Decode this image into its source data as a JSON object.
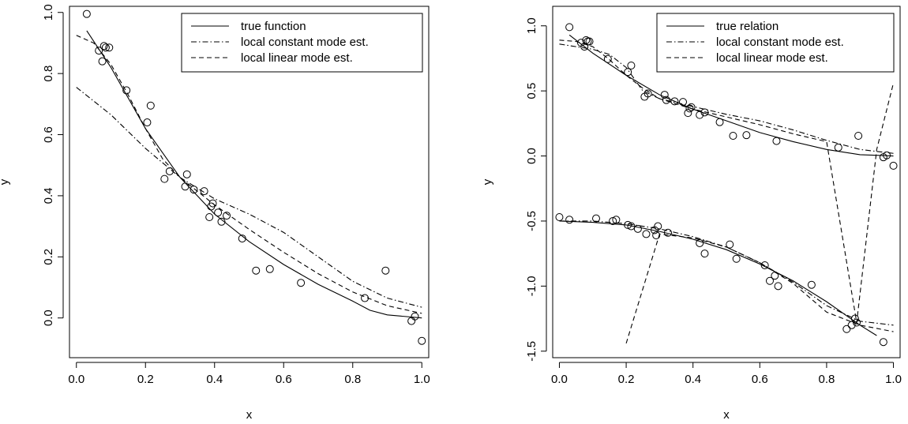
{
  "chart_data": [
    {
      "type": "scatter",
      "title": "",
      "xlabel": "x",
      "ylabel": "y",
      "xlim": [
        -0.02,
        1.02
      ],
      "ylim": [
        -0.13,
        1.02
      ],
      "xticks": [
        0.0,
        0.2,
        0.4,
        0.6,
        0.8,
        1.0
      ],
      "xtick_labels": [
        "0.0",
        "0.2",
        "0.4",
        "0.6",
        "0.8",
        "1.0"
      ],
      "yticks": [
        0.0,
        0.2,
        0.4,
        0.6,
        0.8,
        1.0
      ],
      "ytick_labels": [
        "0.0",
        "0.2",
        "0.4",
        "0.6",
        "0.8",
        "1.0"
      ],
      "legend_position": "top-right",
      "points": {
        "x": [
          0.03,
          0.065,
          0.075,
          0.08,
          0.085,
          0.095,
          0.145,
          0.205,
          0.215,
          0.255,
          0.27,
          0.315,
          0.32,
          0.34,
          0.37,
          0.385,
          0.39,
          0.395,
          0.41,
          0.42,
          0.435,
          0.48,
          0.52,
          0.56,
          0.65,
          0.835,
          0.895,
          0.97,
          0.98,
          1.0
        ],
        "y": [
          0.995,
          0.875,
          0.84,
          0.89,
          0.885,
          0.885,
          0.745,
          0.64,
          0.695,
          0.455,
          0.48,
          0.43,
          0.47,
          0.42,
          0.415,
          0.33,
          0.365,
          0.375,
          0.345,
          0.315,
          0.335,
          0.26,
          0.155,
          0.16,
          0.115,
          0.065,
          0.155,
          -0.01,
          0.005,
          -0.075
        ]
      },
      "series": [
        {
          "name": "true function",
          "style": "solid",
          "x": [
            0.03,
            0.1,
            0.2,
            0.3,
            0.4,
            0.5,
            0.6,
            0.7,
            0.8,
            0.85,
            0.9,
            0.95,
            1.0
          ],
          "y": [
            0.94,
            0.82,
            0.62,
            0.46,
            0.34,
            0.25,
            0.175,
            0.11,
            0.055,
            0.025,
            0.01,
            0.005,
            0.0
          ]
        },
        {
          "name": "local constant mode est.",
          "style": "dashdot",
          "x": [
            0.0,
            0.1,
            0.2,
            0.3,
            0.4,
            0.5,
            0.6,
            0.7,
            0.8,
            0.9,
            1.0
          ],
          "y": [
            0.755,
            0.665,
            0.555,
            0.46,
            0.39,
            0.34,
            0.28,
            0.2,
            0.12,
            0.065,
            0.035
          ]
        },
        {
          "name": "local linear mode est.",
          "style": "dashed",
          "x": [
            0.0,
            0.05,
            0.1,
            0.15,
            0.2,
            0.25,
            0.3,
            0.4,
            0.5,
            0.6,
            0.7,
            0.8,
            0.9,
            1.0
          ],
          "y": [
            0.925,
            0.9,
            0.83,
            0.73,
            0.62,
            0.52,
            0.46,
            0.37,
            0.29,
            0.215,
            0.145,
            0.085,
            0.04,
            0.015
          ]
        }
      ]
    },
    {
      "type": "scatter",
      "title": "",
      "xlabel": "x",
      "ylabel": "y",
      "xlim": [
        -0.02,
        1.02
      ],
      "ylim": [
        -1.55,
        1.15
      ],
      "xticks": [
        0.0,
        0.2,
        0.4,
        0.6,
        0.8,
        1.0
      ],
      "xtick_labels": [
        "0.0",
        "0.2",
        "0.4",
        "0.6",
        "0.8",
        "1.0"
      ],
      "yticks": [
        -1.5,
        -1.0,
        -0.5,
        0.0,
        0.5,
        1.0
      ],
      "ytick_labels": [
        "-1.5",
        "-1.0",
        "-0.5",
        "0.0",
        "0.5",
        "1.0"
      ],
      "legend_position": "top-right",
      "points": {
        "x": [
          0.03,
          0.065,
          0.075,
          0.08,
          0.085,
          0.09,
          0.145,
          0.205,
          0.215,
          0.255,
          0.265,
          0.315,
          0.32,
          0.345,
          0.37,
          0.385,
          0.39,
          0.395,
          0.42,
          0.435,
          0.48,
          0.52,
          0.56,
          0.65,
          0.835,
          0.895,
          0.97,
          0.98,
          1.0,
          0.0,
          0.03,
          0.11,
          0.16,
          0.17,
          0.205,
          0.215,
          0.235,
          0.26,
          0.285,
          0.29,
          0.295,
          0.325,
          0.42,
          0.435,
          0.51,
          0.53,
          0.615,
          0.63,
          0.645,
          0.655,
          0.755,
          0.86,
          0.875,
          0.885,
          0.89,
          0.97
        ],
        "y": [
          0.99,
          0.87,
          0.84,
          0.89,
          0.88,
          0.88,
          0.745,
          0.645,
          0.695,
          0.455,
          0.48,
          0.47,
          0.43,
          0.42,
          0.415,
          0.33,
          0.365,
          0.375,
          0.315,
          0.335,
          0.26,
          0.155,
          0.16,
          0.115,
          0.065,
          0.155,
          -0.01,
          0.005,
          -0.075,
          -0.47,
          -0.49,
          -0.48,
          -0.5,
          -0.49,
          -0.53,
          -0.54,
          -0.56,
          -0.6,
          -0.57,
          -0.61,
          -0.54,
          -0.59,
          -0.67,
          -0.75,
          -0.68,
          -0.79,
          -0.84,
          -0.96,
          -0.92,
          -1.0,
          -0.99,
          -1.33,
          -1.3,
          -1.25,
          -1.28,
          -1.43
        ]
      },
      "series": [
        {
          "name": "true relation",
          "style": "solid",
          "x": [
            0.03,
            0.1,
            0.2,
            0.3,
            0.4,
            0.5,
            0.6,
            0.7,
            0.8,
            0.9,
            0.95,
            1.0
          ],
          "y": [
            0.93,
            0.79,
            0.62,
            0.47,
            0.36,
            0.27,
            0.18,
            0.11,
            0.05,
            0.01,
            0.005,
            0.0
          ],
          "x2": [
            0.0,
            0.1,
            0.2,
            0.3,
            0.4,
            0.5,
            0.6,
            0.7,
            0.8,
            0.9,
            0.95
          ],
          "y2": [
            -0.5,
            -0.51,
            -0.53,
            -0.58,
            -0.64,
            -0.72,
            -0.83,
            -0.96,
            -1.12,
            -1.3,
            -1.38
          ]
        },
        {
          "name": "local constant mode est.",
          "style": "dashdot",
          "x": [
            0.0,
            0.1,
            0.15,
            0.2,
            0.25,
            0.3,
            0.4,
            0.5,
            0.6,
            0.7,
            0.8,
            0.9,
            1.0
          ],
          "y": [
            0.86,
            0.82,
            0.78,
            0.68,
            0.5,
            0.44,
            0.38,
            0.32,
            0.27,
            0.2,
            0.12,
            0.05,
            0.02
          ],
          "x2": [
            0.0,
            0.1,
            0.2,
            0.3,
            0.4,
            0.5,
            0.6,
            0.7,
            0.8,
            0.9,
            1.0
          ],
          "y2": [
            -0.5,
            -0.5,
            -0.52,
            -0.56,
            -0.62,
            -0.7,
            -0.82,
            -0.97,
            -1.15,
            -1.27,
            -1.3
          ]
        },
        {
          "name": "local linear mode est.",
          "style": "dashed",
          "x": [
            0.0,
            0.05,
            0.1,
            0.15,
            0.2,
            0.25,
            0.3,
            0.4,
            0.5,
            0.6,
            0.7,
            0.8,
            0.89,
            0.95,
            1.0
          ],
          "y": [
            0.89,
            0.88,
            0.84,
            0.74,
            0.62,
            0.52,
            0.44,
            0.36,
            0.3,
            0.24,
            0.17,
            0.11,
            -1.28,
            0.05,
            0.56
          ],
          "x2": [
            0.2,
            0.3,
            0.4,
            0.5,
            0.6,
            0.7,
            0.8,
            0.9,
            1.0
          ],
          "y2": [
            -1.44,
            -0.6,
            -0.63,
            -0.7,
            -0.82,
            -0.98,
            -1.2,
            -1.3,
            -1.35
          ]
        }
      ]
    }
  ]
}
